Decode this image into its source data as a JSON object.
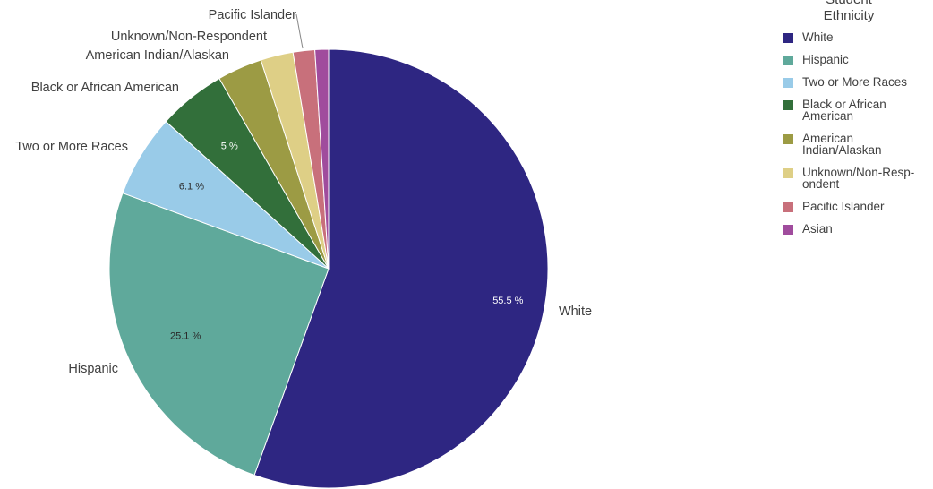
{
  "chart_data": {
    "type": "pie",
    "legend_title": "Student\nEthnicity",
    "legend_position": "right",
    "slices": [
      {
        "label": "White",
        "legend_label": "White",
        "value": 55.5,
        "value_label": "55.5 %",
        "color": "#2e2682"
      },
      {
        "label": "Hispanic",
        "legend_label": "Hispanic",
        "value": 25.1,
        "value_label": "25.1 %",
        "color": "#5fa99b"
      },
      {
        "label": "Two or More Races",
        "legend_label": "Two or More Races",
        "value": 6.1,
        "value_label": "6.1 %",
        "color": "#99cbe8"
      },
      {
        "label": "Black or African American",
        "legend_label": "Black or African American",
        "value": 5.0,
        "value_label": "5 %",
        "color": "#326f3a"
      },
      {
        "label": "American Indian/Alaskan",
        "legend_label": "American Indian/Alaskan",
        "value": 3.3,
        "value_label": "",
        "color": "#9c9b44"
      },
      {
        "label": "Unknown/Non-Respondent",
        "legend_label": "Unknown/Non-Resp-ondent",
        "value": 2.4,
        "value_label": "",
        "color": "#decf86"
      },
      {
        "label": "Pacific Islander",
        "legend_label": "Pacific Islander",
        "value": 1.6,
        "value_label": "",
        "color": "#c8707b"
      },
      {
        "label": "Asian",
        "legend_label": "Asian",
        "value": 1.0,
        "value_label": "",
        "color": "#a04c9d"
      }
    ]
  }
}
